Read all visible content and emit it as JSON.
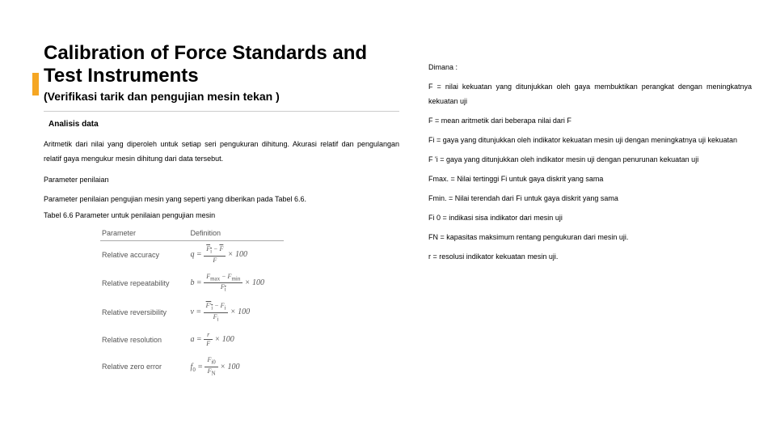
{
  "title": "Calibration of Force Standards and Test Instruments",
  "subtitle": "(Verifikasi tarik dan pengujian mesin tekan )",
  "left": {
    "section_head": "Analisis data",
    "p1": "Aritmetik dari nilai yang diperoleh untuk setiap seri pengukuran dihitung. Akurasi relatif dan pengulangan relatif gaya mengukur mesin dihitung dari data tersebut.",
    "p2_head": "Parameter penilaian",
    "p2": "Parameter penilaian pengujian mesin yang seperti yang diberikan pada Tabel 6.6.",
    "caption": "Tabel 6.6 Parameter untuk penilaian pengujian mesin"
  },
  "table": {
    "col1": "Parameter",
    "col2": "Definition",
    "rows": [
      {
        "label": "Relative accuracy"
      },
      {
        "label": "Relative repeatability"
      },
      {
        "label": "Relative reversibility"
      },
      {
        "label": "Relative resolution"
      },
      {
        "label": "Relative zero error"
      }
    ]
  },
  "right": {
    "l0": "Dimana :",
    "l1": "F = nilai kekuatan yang ditunjukkan oleh gaya membuktikan perangkat dengan meningkatnya kekuatan uji",
    "l2": "F = mean aritmetik dari beberapa nilai dari F",
    "l3": "Fi = gaya yang ditunjukkan oleh indikator kekuatan mesin uji dengan meningkatnya uji kekuatan",
    "l4": "F 'i = gaya yang ditunjukkan oleh indikator mesin uji dengan penurunan kekuatan uji",
    "l5": "Fmax. = Nilai tertinggi Fi untuk gaya diskrit yang sama",
    "l6": "Fmin. = Nilai terendah dari Fi untuk gaya diskrit yang sama",
    "l7": "Fi 0 = indikasi sisa indikator dari mesin uji",
    "l8": "FN = kapasitas maksimum rentang pengukuran dari mesin uji.",
    "l9": "r = resolusi indikator kekuatan mesin uji."
  },
  "colors": {
    "accent": "#f5a623",
    "text": "#000000",
    "table_text": "#555555"
  }
}
